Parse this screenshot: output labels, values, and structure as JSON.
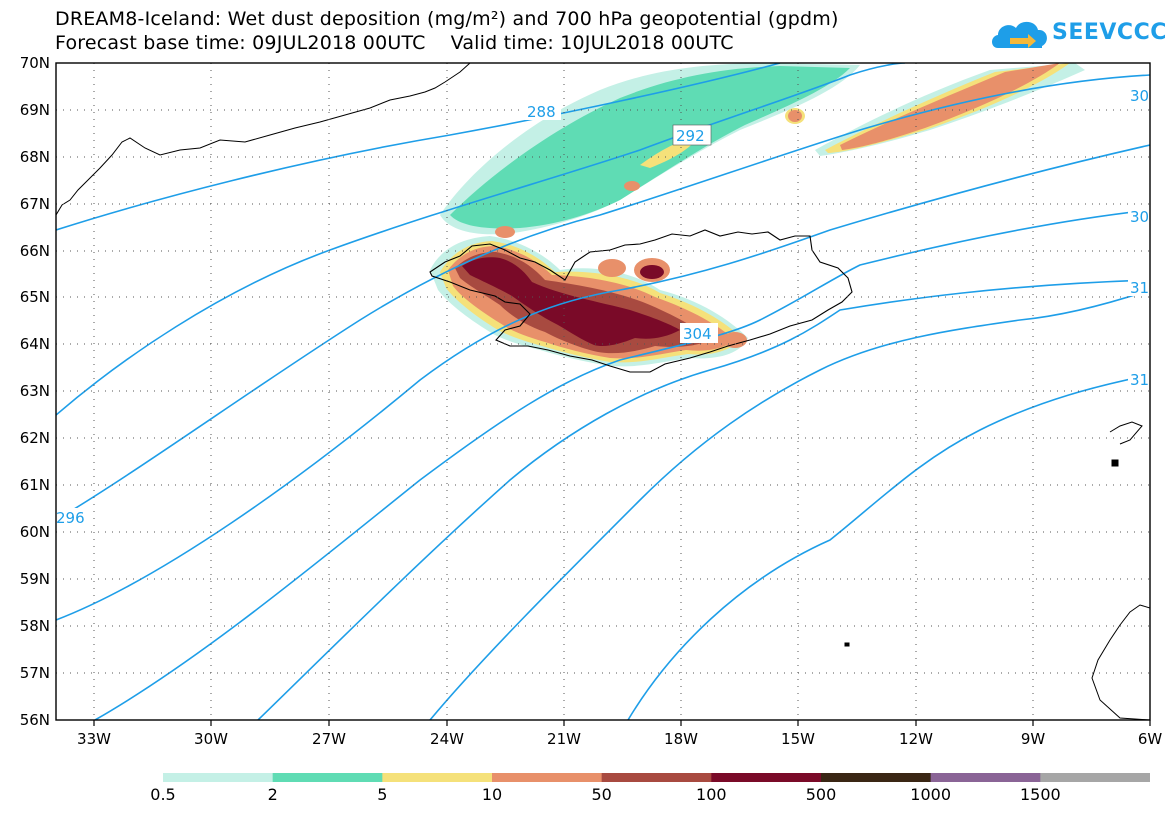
{
  "header": {
    "title": "DREAM8-Iceland: Wet dust deposition (mg/m²) and 700 hPa geopotential (gpdm)",
    "subtitle": "Forecast base time: 09JUL2018 00UTC    Valid time: 10JUL2018 00UTC"
  },
  "logo": {
    "text": "SEEVCCC",
    "icon": "cloud-icon",
    "color": "#1e9ee8"
  },
  "map": {
    "lat_labels": [
      "70N",
      "69N",
      "68N",
      "67N",
      "66N",
      "65N",
      "64N",
      "63N",
      "62N",
      "61N",
      "60N",
      "59N",
      "58N",
      "57N",
      "56N"
    ],
    "lon_labels": [
      "33W",
      "30W",
      "27W",
      "24W",
      "21W",
      "18W",
      "15W",
      "12W",
      "9W",
      "6W"
    ],
    "contour_labels": [
      "288",
      "292",
      "304",
      "296",
      "30",
      "30",
      "31",
      "31"
    ],
    "contour_color": "#1e9ee8"
  },
  "legend": {
    "colors": [
      "#c4f0e6",
      "#5fdcb4",
      "#f5e17a",
      "#e8906a",
      "#a84a40",
      "#7a0a28",
      "#3a2614",
      "#8a6496",
      "#a6a6a6"
    ],
    "labels": [
      "0.5",
      "2",
      "5",
      "10",
      "50",
      "100",
      "500",
      "1000",
      "1500"
    ]
  }
}
